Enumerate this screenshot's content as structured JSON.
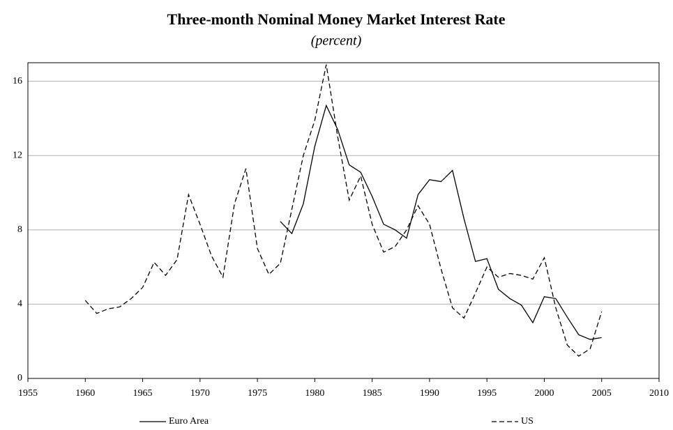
{
  "chart_data": {
    "type": "line",
    "title": "Three-month Nominal Money Market Interest Rate",
    "subtitle": "(percent)",
    "x": [
      1960,
      1961,
      1962,
      1963,
      1964,
      1965,
      1966,
      1967,
      1968,
      1969,
      1970,
      1971,
      1972,
      1973,
      1974,
      1975,
      1976,
      1977,
      1978,
      1979,
      1980,
      1981,
      1982,
      1983,
      1984,
      1985,
      1986,
      1987,
      1988,
      1989,
      1990,
      1991,
      1992,
      1993,
      1994,
      1995,
      1996,
      1997,
      1998,
      1999,
      2000,
      2001,
      2002,
      2003,
      2004,
      2005
    ],
    "series": [
      {
        "name": "Euro Area",
        "color": "#000000",
        "dashed": false,
        "values": [
          null,
          null,
          null,
          null,
          null,
          null,
          null,
          null,
          null,
          null,
          null,
          null,
          null,
          null,
          null,
          null,
          null,
          8.45,
          7.8,
          9.4,
          12.5,
          14.7,
          13.4,
          11.5,
          11.1,
          9.8,
          8.3,
          8.0,
          7.55,
          9.9,
          10.7,
          10.6,
          11.2,
          8.6,
          6.3,
          6.45,
          4.8,
          4.3,
          3.95,
          3.0,
          4.4,
          4.3,
          3.3,
          2.35,
          2.1,
          2.2
        ]
      },
      {
        "name": "US",
        "color": "#000000",
        "dashed": true,
        "values": [
          4.2,
          3.5,
          3.75,
          3.85,
          4.3,
          4.9,
          6.25,
          5.55,
          6.4,
          9.9,
          8.3,
          6.6,
          5.45,
          9.4,
          11.3,
          7.0,
          5.6,
          6.2,
          9.1,
          12.0,
          13.9,
          16.9,
          13.0,
          9.6,
          10.9,
          8.3,
          6.8,
          7.1,
          8.0,
          9.3,
          8.3,
          5.9,
          3.8,
          3.25,
          4.6,
          6.0,
          5.45,
          5.65,
          5.55,
          5.35,
          6.5,
          3.8,
          1.8,
          1.2,
          1.6,
          3.6
        ]
      }
    ],
    "xlim": [
      1955,
      2010
    ],
    "xticks": [
      1955,
      1960,
      1965,
      1970,
      1975,
      1980,
      1985,
      1990,
      1995,
      2000,
      2005,
      2010
    ],
    "ylim": [
      0,
      17
    ],
    "yticks": [
      0,
      4,
      8,
      12,
      16
    ],
    "grid": true
  }
}
